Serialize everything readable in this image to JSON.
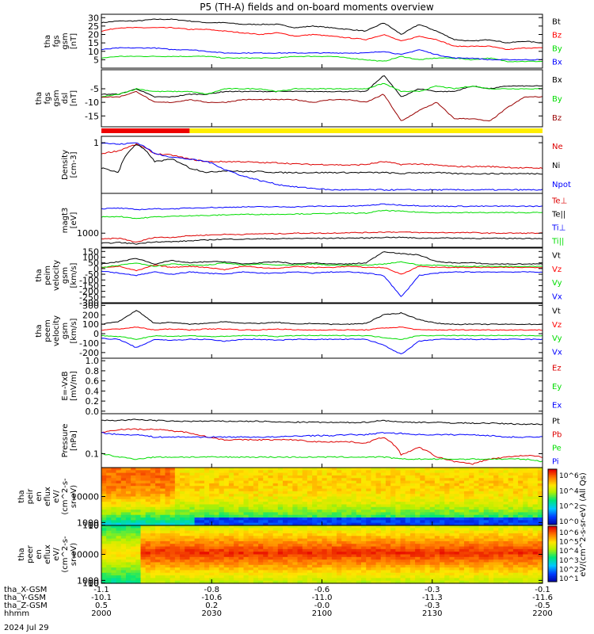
{
  "title": "P5 (TH-A) fields and on-board moments overview",
  "date_label": "2024 Jul 29",
  "orbit_rows": [
    {
      "label": "tha_X-GSM",
      "values": [
        "-1.1",
        "-0.8",
        "-0.6",
        "-0.3",
        "-0.1"
      ]
    },
    {
      "label": "tha_Y-GSM",
      "values": [
        "-10.1",
        "-10.6",
        "-11.0",
        "-11.3",
        "-11.6"
      ]
    },
    {
      "label": "tha_Z-GSM",
      "values": [
        "0.5",
        "0.2",
        "-0.0",
        "-0.3",
        "-0.5"
      ]
    },
    {
      "label": "hhmm",
      "values": [
        "2000",
        "2030",
        "2100",
        "2130",
        "2200"
      ]
    }
  ],
  "colorbar": {
    "label": "eV/(cm^2-s-sr-eV) (All Qs)",
    "top_ticks": [
      "10^6",
      "10^4",
      "10^2",
      "10^0"
    ],
    "bottom_ticks": [
      "10^6",
      "10^5",
      "10^4",
      "10^3",
      "10^2",
      "10^1"
    ]
  },
  "chart_data": [
    {
      "id": "p1",
      "type": "line",
      "ylabel": [
        "tha",
        "fgs",
        "gsm",
        "[nT]"
      ],
      "ylim": [
        0,
        32
      ],
      "yticks": [
        "30",
        "25",
        "20",
        "15",
        "10",
        "5"
      ],
      "series": [
        {
          "name": "Bt",
          "color": "#000000",
          "values": [
            27,
            28,
            28,
            29,
            29,
            28,
            27,
            27,
            26,
            26,
            26,
            24,
            25,
            24,
            23,
            22,
            27,
            20,
            26,
            22,
            17,
            16,
            17,
            15,
            16,
            15
          ]
        },
        {
          "name": "Bz",
          "color": "#ff0000",
          "values": [
            22,
            24,
            24,
            24,
            24,
            23,
            23,
            22,
            21,
            20,
            21,
            19,
            20,
            19,
            18,
            17,
            20,
            16,
            19,
            17,
            13,
            13,
            13,
            11,
            12,
            12
          ]
        },
        {
          "name": "By",
          "color": "#00dd00",
          "values": [
            6,
            7,
            7,
            7,
            7,
            7,
            7,
            6,
            6,
            6,
            6,
            7,
            7,
            7,
            6,
            5,
            4,
            7,
            5,
            6,
            6,
            5,
            6,
            4,
            4,
            4
          ]
        },
        {
          "name": "Bx",
          "color": "#0000ff",
          "values": [
            11,
            12,
            12,
            12,
            11,
            11,
            10,
            9,
            9,
            9,
            9,
            9,
            9,
            9,
            9,
            9,
            10,
            8,
            11,
            8,
            6,
            6,
            5,
            5,
            5,
            5
          ]
        }
      ]
    },
    {
      "id": "p2",
      "type": "line",
      "ylabel": [
        "tha",
        "fgs",
        "gsm",
        "dsl",
        "[nT]"
      ],
      "ylim": [
        -19,
        2
      ],
      "yticks": [
        "-5",
        "-10",
        "-15"
      ],
      "series": [
        {
          "name": "Bx",
          "color": "#000000",
          "values": [
            -7,
            -7,
            -5,
            -8,
            -8,
            -7,
            -7,
            -6,
            -6,
            -6,
            -6,
            -6,
            -6,
            -6,
            -6,
            -6,
            0,
            -8,
            -5,
            -6,
            -6,
            -4,
            -5,
            -4,
            -4,
            -4
          ]
        },
        {
          "name": "By",
          "color": "#00dd00",
          "values": [
            -8,
            -7,
            -5,
            -6,
            -6,
            -6,
            -7,
            -5,
            -5,
            -5,
            -6,
            -5,
            -5,
            -5,
            -5,
            -5,
            -3,
            -6,
            -6,
            -4,
            -5,
            -4,
            -5,
            -5,
            -5,
            -5
          ]
        },
        {
          "name": "Bz",
          "color": "#990000",
          "values": [
            -8,
            -8,
            -6,
            -10,
            -10,
            -9,
            -10,
            -10,
            -9,
            -9,
            -9,
            -9,
            -10,
            -9,
            -9,
            -10,
            -7,
            -17,
            -13,
            -10,
            -16,
            -16,
            -17,
            -12,
            -8,
            -8
          ]
        }
      ]
    },
    {
      "id": "p3",
      "type": "line",
      "log": true,
      "ylabel": [
        "Density",
        "[cm-3]"
      ],
      "ylim": [
        0.04,
        1.5
      ],
      "yticks": [
        "1"
      ],
      "series": [
        {
          "name": "Ne",
          "color": "#dd0000",
          "values": [
            0.5,
            0.6,
            0.9,
            0.5,
            0.45,
            0.35,
            0.3,
            0.3,
            0.3,
            0.28,
            0.28,
            0.26,
            0.25,
            0.25,
            0.24,
            0.25,
            0.3,
            0.25,
            0.26,
            0.24,
            0.22,
            0.22,
            0.22,
            0.21,
            0.2,
            0.2
          ]
        },
        {
          "name": "Ni",
          "color": "#000000",
          "values": [
            0.2,
            0.15,
            0.9,
            0.3,
            0.35,
            0.2,
            0.15,
            0.17,
            0.16,
            0.16,
            0.15,
            0.15,
            0.15,
            0.15,
            0.15,
            0.15,
            0.15,
            0.14,
            0.15,
            0.15,
            0.14,
            0.14,
            0.14,
            0.14,
            0.14,
            0.14
          ]
        },
        {
          "name": "Npot",
          "color": "#0000ff",
          "values": [
            1,
            0.9,
            1,
            0.5,
            0.4,
            0.35,
            0.3,
            0.18,
            0.12,
            0.09,
            0.07,
            0.06,
            0.055,
            0.05,
            0.05,
            0.05,
            0.05,
            0.05,
            0.05,
            0.05,
            0.05,
            0.05,
            0.05,
            0.05,
            0.05,
            0.05
          ]
        }
      ]
    },
    {
      "id": "p4",
      "type": "line",
      "log": true,
      "ylabel": [
        "magt3",
        "[eV]"
      ],
      "ylim": [
        300,
        30000
      ],
      "yticks": [
        "1000"
      ],
      "series": [
        {
          "name": "Te⊥",
          "color": "#dd0000",
          "values": [
            600,
            650,
            450,
            700,
            700,
            800,
            850,
            900,
            900,
            950,
            950,
            1000,
            1000,
            1000,
            1050,
            1050,
            1100,
            1100,
            1050,
            1050,
            1050,
            1050,
            1000,
            1000,
            1000,
            1000
          ]
        },
        {
          "name": "Te||",
          "color": "#000000",
          "values": [
            420,
            450,
            400,
            480,
            480,
            520,
            560,
            600,
            600,
            620,
            620,
            640,
            640,
            650,
            660,
            660,
            700,
            700,
            650,
            660,
            660,
            640,
            640,
            640,
            640,
            640
          ]
        },
        {
          "name": "Ti⊥",
          "color": "#0000ff",
          "values": [
            8000,
            8500,
            7500,
            8000,
            8000,
            8500,
            9000,
            9000,
            9500,
            9500,
            9500,
            9500,
            10000,
            10000,
            10000,
            10500,
            12000,
            11000,
            10500,
            10000,
            10000,
            10000,
            10000,
            10000,
            10000,
            10000
          ]
        },
        {
          "name": "Ti||",
          "color": "#00dd00",
          "values": [
            4000,
            4200,
            3500,
            4000,
            4200,
            4500,
            4500,
            4800,
            5000,
            5000,
            5000,
            5200,
            5200,
            5400,
            5500,
            5500,
            7000,
            6500,
            6000,
            5800,
            5800,
            5800,
            5800,
            5800,
            5800,
            5800
          ]
        }
      ]
    },
    {
      "id": "p5",
      "type": "line",
      "ylabel": [
        "tha",
        "peim",
        "velocity",
        "gsm",
        "[km/s]"
      ],
      "ylim": [
        -300,
        180
      ],
      "yticks": [
        "150",
        "100",
        "50",
        "0",
        "-50",
        "-100",
        "-150",
        "-200",
        "-250",
        "-300"
      ],
      "series": [
        {
          "name": "Vt",
          "color": "#000000",
          "values": [
            40,
            60,
            90,
            40,
            70,
            50,
            60,
            60,
            40,
            50,
            60,
            40,
            50,
            40,
            40,
            50,
            150,
            130,
            120,
            60,
            50,
            50,
            40,
            40,
            40,
            40
          ]
        },
        {
          "name": "Vz",
          "color": "#ff0000",
          "values": [
            10,
            20,
            -20,
            30,
            10,
            20,
            10,
            -10,
            20,
            10,
            0,
            20,
            10,
            10,
            20,
            10,
            10,
            -50,
            20,
            10,
            10,
            10,
            10,
            10,
            10,
            10
          ]
        },
        {
          "name": "Vy",
          "color": "#00dd00",
          "values": [
            10,
            30,
            50,
            20,
            40,
            30,
            30,
            50,
            30,
            40,
            30,
            30,
            40,
            30,
            30,
            30,
            40,
            60,
            30,
            30,
            20,
            20,
            20,
            20,
            20,
            20
          ]
        },
        {
          "name": "Vx",
          "color": "#0000ff",
          "values": [
            -20,
            -40,
            -60,
            -30,
            -50,
            -30,
            -40,
            -50,
            -30,
            -40,
            -40,
            -30,
            -40,
            -30,
            -30,
            -40,
            -60,
            -250,
            -60,
            -40,
            -30,
            -30,
            -30,
            -30,
            -30,
            -30
          ]
        }
      ]
    },
    {
      "id": "p6",
      "type": "line",
      "ylabel": [
        "tha",
        "peem",
        "velocity",
        "gsm",
        "[km/s]"
      ],
      "ylim": [
        -260,
        320
      ],
      "yticks": [
        "300",
        "200",
        "100",
        "0",
        "-100",
        "-200"
      ],
      "series": [
        {
          "name": "Vt",
          "color": "#000000",
          "values": [
            100,
            130,
            250,
            110,
            120,
            100,
            110,
            130,
            110,
            110,
            120,
            100,
            110,
            100,
            100,
            110,
            200,
            220,
            150,
            110,
            100,
            100,
            100,
            100,
            100,
            100
          ]
        },
        {
          "name": "Vz",
          "color": "#ff0000",
          "values": [
            40,
            50,
            70,
            40,
            50,
            40,
            50,
            50,
            40,
            40,
            50,
            40,
            40,
            40,
            40,
            40,
            60,
            70,
            40,
            40,
            40,
            40,
            40,
            40,
            40,
            40
          ]
        },
        {
          "name": "Vy",
          "color": "#00dd00",
          "values": [
            -20,
            -30,
            -60,
            -20,
            -30,
            -20,
            -30,
            -30,
            -20,
            -20,
            -30,
            -20,
            -20,
            -20,
            -20,
            -20,
            -40,
            -60,
            -20,
            -20,
            -20,
            -20,
            -20,
            -20,
            -20,
            -20
          ]
        },
        {
          "name": "Vx",
          "color": "#0000ff",
          "values": [
            -50,
            -60,
            -150,
            -60,
            -70,
            -60,
            -60,
            -80,
            -60,
            -60,
            -70,
            -60,
            -60,
            -60,
            -60,
            -60,
            -120,
            -220,
            -80,
            -60,
            -60,
            -60,
            -60,
            -60,
            -60,
            -60
          ]
        }
      ]
    },
    {
      "id": "p7",
      "type": "line",
      "ylabel": [
        "E=-VxB",
        "[mV/m]"
      ],
      "ylim": [
        -0.05,
        1.05
      ],
      "yticks": [
        "1.0",
        "0.8",
        "0.6",
        "0.4",
        "0.2",
        "0.0"
      ],
      "series": [
        {
          "name": "Ez",
          "color": "#dd0000",
          "values": []
        },
        {
          "name": "Ey",
          "color": "#00dd00",
          "values": []
        },
        {
          "name": "Ex",
          "color": "#0000ff",
          "values": []
        }
      ]
    },
    {
      "id": "p8",
      "type": "line",
      "log": true,
      "ylabel": [
        "Pressure",
        "[nPa]"
      ],
      "ylim": [
        0.04,
        1.4
      ],
      "yticks": [
        "0.1"
      ],
      "series": [
        {
          "name": "Pt",
          "color": "#000000",
          "values": [
            0.9,
            0.9,
            0.95,
            0.9,
            0.85,
            0.85,
            0.85,
            0.85,
            0.85,
            0.85,
            0.8,
            0.8,
            0.8,
            0.78,
            0.78,
            0.8,
            0.9,
            0.8,
            0.8,
            0.78,
            0.76,
            0.75,
            0.75,
            0.72,
            0.7,
            0.7
          ]
        },
        {
          "name": "Pb",
          "color": "#dd0000",
          "values": [
            0.4,
            0.5,
            0.5,
            0.5,
            0.45,
            0.4,
            0.3,
            0.25,
            0.25,
            0.25,
            0.25,
            0.25,
            0.22,
            0.22,
            0.22,
            0.2,
            0.3,
            0.09,
            0.15,
            0.08,
            0.06,
            0.05,
            0.07,
            0.08,
            0.09,
            0.08
          ]
        },
        {
          "name": "Pe",
          "color": "#00dd00",
          "values": [
            0.1,
            0.08,
            0.07,
            0.08,
            0.08,
            0.08,
            0.08,
            0.08,
            0.08,
            0.08,
            0.08,
            0.08,
            0.08,
            0.08,
            0.08,
            0.08,
            0.08,
            0.07,
            0.07,
            0.07,
            0.07,
            0.07,
            0.07,
            0.07,
            0.07,
            0.06
          ]
        },
        {
          "name": "Pi",
          "color": "#0000ff",
          "values": [
            0.4,
            0.35,
            0.35,
            0.3,
            0.3,
            0.3,
            0.3,
            0.3,
            0.3,
            0.3,
            0.3,
            0.32,
            0.33,
            0.33,
            0.35,
            0.35,
            0.4,
            0.38,
            0.35,
            0.35,
            0.35,
            0.35,
            0.33,
            0.3,
            0.3,
            0.3
          ]
        }
      ]
    },
    {
      "id": "p9",
      "type": "heatmap",
      "ylabel": [
        "tha",
        "peir",
        "en",
        "eflux",
        "eV/",
        "(cm^2-s-",
        "sr-eV)"
      ],
      "ylim": [
        5,
        20000
      ],
      "yticks": [
        "10000",
        "1000",
        "100",
        "10"
      ]
    },
    {
      "id": "p10",
      "type": "heatmap",
      "ylabel": [
        "tha",
        "peer",
        "en",
        "eflux",
        "eV/",
        "(cm^2-s-",
        "sr-eV)"
      ],
      "ylim": [
        5,
        20000
      ],
      "yticks": [
        "10000",
        "1000",
        "100",
        "10"
      ]
    }
  ],
  "mode_bar": {
    "segments": [
      {
        "color": "#ee0000",
        "fraction": 0.2
      },
      {
        "color": "#ffee00",
        "fraction": 0.8
      }
    ]
  }
}
